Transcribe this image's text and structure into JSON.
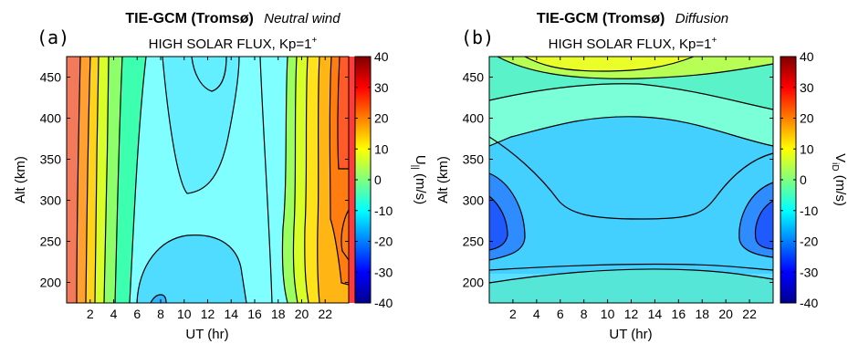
{
  "chart_data": [
    {
      "type": "contour",
      "panel_label": "(a)",
      "title": "TIE-GCM (Tromsø)",
      "title_suffix": "Neutral wind",
      "subtitle_main": "HIGH SOLAR FLUX, Kp=1",
      "subtitle_sup": "+",
      "xlabel": "UT (hr)",
      "ylabel": "Alt (km)",
      "colorbar_label_main": "U",
      "colorbar_label_sub": "||",
      "colorbar_label_units": " (m/s)",
      "xlim": [
        0,
        24
      ],
      "ylim": [
        175,
        475
      ],
      "clim": [
        -40,
        40
      ],
      "xticks": [
        2,
        4,
        6,
        8,
        10,
        12,
        14,
        16,
        18,
        20,
        22
      ],
      "yticks": [
        200,
        250,
        300,
        350,
        400,
        450
      ],
      "cticks": [
        -40,
        -30,
        -20,
        -10,
        0,
        10,
        20,
        30,
        40
      ],
      "contour_levels": [
        -25,
        -20,
        -15,
        -10,
        -5,
        0,
        5,
        10,
        15,
        20,
        25
      ]
    },
    {
      "type": "contour",
      "panel_label": "(b)",
      "title": "TIE-GCM (Tromsø)",
      "title_suffix": "Diffusion",
      "subtitle_main": "HIGH SOLAR FLUX, Kp=1",
      "subtitle_sup": "+",
      "xlabel": "UT (hr)",
      "ylabel": "Alt (km)",
      "colorbar_label_main": "V",
      "colorbar_label_sub": "iD",
      "colorbar_label_units": " (m/s)",
      "xlim": [
        0,
        24
      ],
      "ylim": [
        175,
        475
      ],
      "clim": [
        -40,
        40
      ],
      "xticks": [
        2,
        4,
        6,
        8,
        10,
        12,
        14,
        16,
        18,
        20,
        22
      ],
      "yticks": [
        200,
        250,
        300,
        350,
        400,
        450
      ],
      "cticks": [
        -40,
        -30,
        -20,
        -10,
        0,
        10,
        20,
        30,
        40
      ],
      "contour_levels": [
        -25,
        -20,
        -15,
        -10,
        -5,
        0,
        5,
        10,
        15,
        20,
        25
      ]
    }
  ]
}
